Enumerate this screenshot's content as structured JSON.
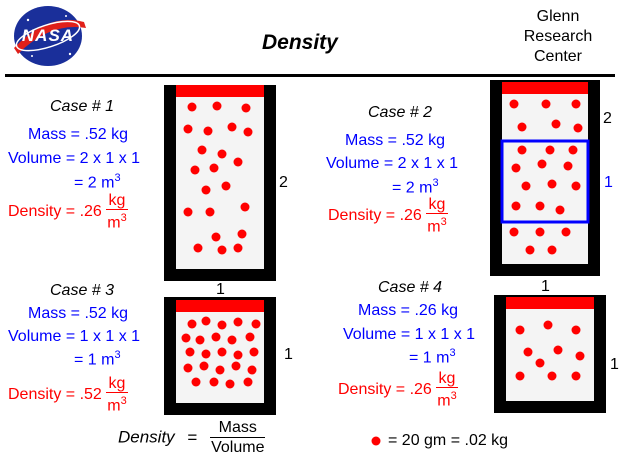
{
  "header": {
    "logo_text": "NASA",
    "title": "Density",
    "center": [
      "Glenn",
      "Research",
      "Center"
    ]
  },
  "colors": {
    "blue": "#0000ff",
    "red": "#ff0000",
    "container": "#000000",
    "lid": "#ff0000"
  },
  "cases": [
    {
      "title": "Case # 1",
      "mass": "Mass = .52 kg",
      "volume": "Volume = 2 x 1 x 1",
      "volume_eq": "= 2 m",
      "volume_exp": "3",
      "density": "Density = .26",
      "unit_num": "kg",
      "unit_den": "m",
      "unit_exp": "3",
      "height_label": "2",
      "width_label": "1"
    },
    {
      "title": "Case # 2",
      "mass": "Mass = .52 kg",
      "volume": "Volume = 2 x 1 x 1",
      "volume_eq": "= 2 m",
      "volume_exp": "3",
      "density": "Density = .26",
      "unit_num": "kg",
      "unit_den": "m",
      "unit_exp": "3",
      "height_label": "2",
      "inner_label": "1",
      "width_label": "1"
    },
    {
      "title": "Case # 3",
      "mass": "Mass = .52 kg",
      "volume": "Volume = 1 x 1 x 1",
      "volume_eq": "= 1 m",
      "volume_exp": "3",
      "density": "Density = .52",
      "unit_num": "kg",
      "unit_den": "m",
      "unit_exp": "3",
      "height_label": "1"
    },
    {
      "title": "Case # 4",
      "mass": "Mass = .26 kg",
      "volume": "Volume = 1 x 1 x 1",
      "volume_eq": "= 1 m",
      "volume_exp": "3",
      "density": "Density = .26",
      "unit_num": "kg",
      "unit_den": "m",
      "unit_exp": "3",
      "height_label": "1"
    }
  ],
  "formula": {
    "lhs": "Density",
    "eq": "=",
    "num": "Mass",
    "den": "Volume"
  },
  "legend": {
    "text": "= 20 gm = .02 kg"
  }
}
